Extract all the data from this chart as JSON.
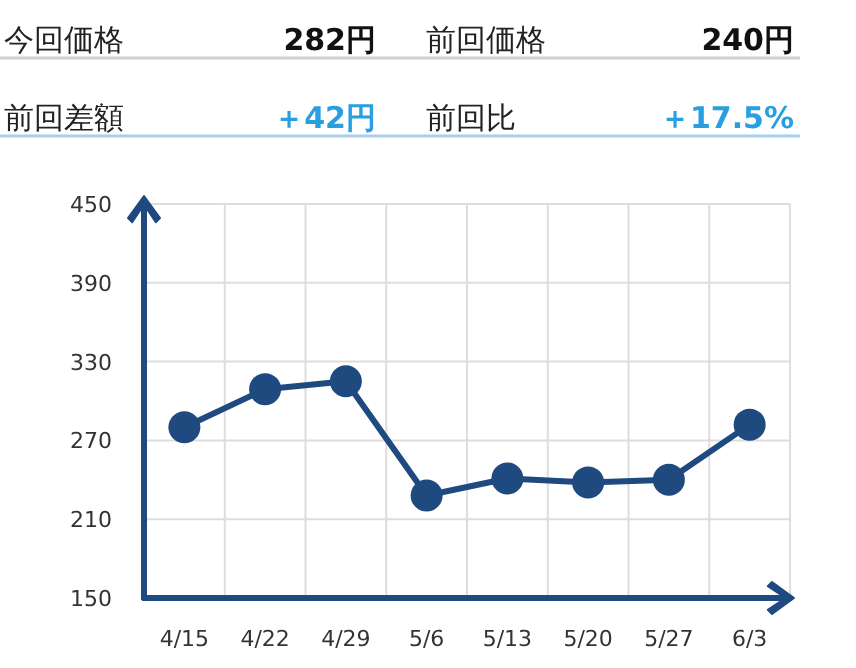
{
  "chart_data": [
    {
      "type": "other",
      "annotations": [
        "今回価格",
        "282円",
        "前回価格",
        "240円",
        "前回差額",
        "＋42円",
        "前回比",
        "＋17.5%"
      ]
    },
    {
      "type": "line",
      "categories": [
        "4/15",
        "4/22",
        "4/29",
        "5/6",
        "5/13",
        "5/20",
        "5/27",
        "6/3"
      ],
      "series": [
        {
          "color": "#1e4a80",
          "values": [
            280,
            309,
            315,
            228,
            241,
            238,
            240,
            282
          ]
        }
      ],
      "ylim": [
        150,
        450
      ],
      "yticks": [
        150,
        210,
        270,
        330,
        390,
        450
      ],
      "grid": true,
      "marker": "circle",
      "line_style": "solid"
    }
  ]
}
